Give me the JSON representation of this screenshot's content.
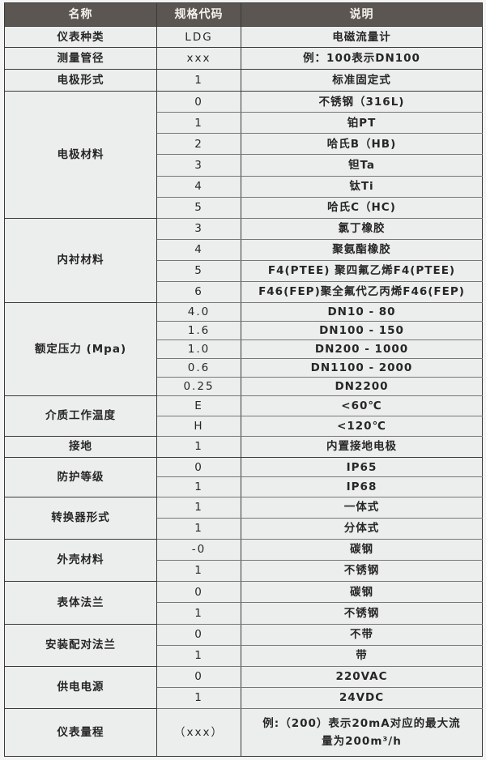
{
  "header": {
    "name": "名称",
    "code": "规格代码",
    "desc": "说明"
  },
  "groups": [
    {
      "name": "仪表种类",
      "rows": [
        {
          "code": "LDG",
          "desc": "电磁流量计"
        }
      ]
    },
    {
      "name": "测量管径",
      "rows": [
        {
          "code": "xxx",
          "desc": "例：100表示DN100"
        }
      ]
    },
    {
      "name": "电极形式",
      "rows": [
        {
          "code": "1",
          "desc": "标准固定式"
        }
      ]
    },
    {
      "name": "电极材料",
      "rows": [
        {
          "code": "0",
          "desc": "不锈钢（316L)"
        },
        {
          "code": "1",
          "desc": "铂PT"
        },
        {
          "code": "2",
          "desc": "哈氏B（HB)"
        },
        {
          "code": "3",
          "desc": "钽Ta"
        },
        {
          "code": "4",
          "desc": "钛Ti"
        },
        {
          "code": "5",
          "desc": "哈氏C（HC)"
        }
      ]
    },
    {
      "name": "内衬材料",
      "rows": [
        {
          "code": "3",
          "desc": "氯丁橡胶"
        },
        {
          "code": "4",
          "desc": "聚氨酯橡胶"
        },
        {
          "code": "5",
          "desc": "F4(PTEE) 聚四氟乙烯F4(PTEE)"
        },
        {
          "code": "6",
          "desc": "F46(FEP)聚全氟代乙丙烯F46(FEP)"
        }
      ]
    },
    {
      "name": "额定压力 (Mpa)",
      "rows": [
        {
          "code": "4.0",
          "desc": "DN10 - 80"
        },
        {
          "code": "1.6",
          "desc": "DN100 - 150"
        },
        {
          "code": "1.0",
          "desc": "DN200 - 1000"
        },
        {
          "code": "0.6",
          "desc": "DN1100 - 2000"
        },
        {
          "code": "0.25",
          "desc": "DN2200"
        }
      ]
    },
    {
      "name": "介质工作温度",
      "rows": [
        {
          "code": "E",
          "desc": "<60℃"
        },
        {
          "code": "H",
          "desc": "<120℃"
        }
      ]
    },
    {
      "name": "接地",
      "rows": [
        {
          "code": "1",
          "desc": "内置接地电极"
        }
      ]
    },
    {
      "name": "防护等级",
      "rows": [
        {
          "code": "0",
          "desc": "IP65"
        },
        {
          "code": "1",
          "desc": "IP68"
        }
      ]
    },
    {
      "name": "转换器形式",
      "rows": [
        {
          "code": "1",
          "desc": "一体式"
        },
        {
          "code": "1",
          "desc": "分体式"
        }
      ]
    },
    {
      "name": "外壳材料",
      "rows": [
        {
          "code": "-0",
          "desc": "碳钢"
        },
        {
          "code": "1",
          "desc": "不锈钢"
        }
      ]
    },
    {
      "name": "表体法兰",
      "rows": [
        {
          "code": "0",
          "desc": "碳钢"
        },
        {
          "code": "1",
          "desc": "不锈钢"
        }
      ]
    },
    {
      "name": "安装配对法兰",
      "rows": [
        {
          "code": "0",
          "desc": "不带"
        },
        {
          "code": "1",
          "desc": "带"
        }
      ]
    },
    {
      "name": "供电电源",
      "rows": [
        {
          "code": "0",
          "desc": "220VAC"
        },
        {
          "code": "1",
          "desc": "24VDC"
        }
      ]
    },
    {
      "name": "仪表量程",
      "rows": [
        {
          "code": "（xxx）",
          "desc": "例:（200）表示20mA对应的最大流量为200m³/h"
        }
      ]
    }
  ]
}
